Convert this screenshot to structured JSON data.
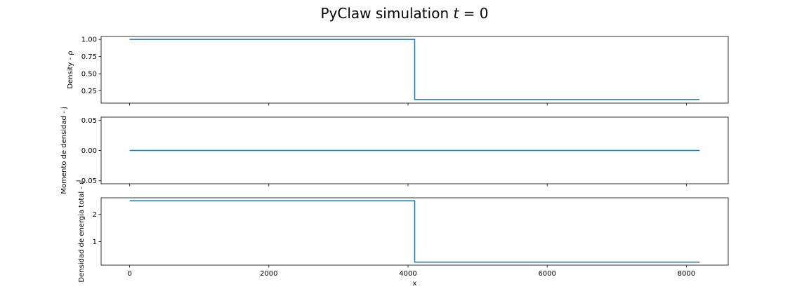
{
  "title": "PyClaw simulation t = 0",
  "title_parts": {
    "text": "PyClaw simulation ",
    "var": "t",
    "eq": " = 0"
  },
  "chart_data": [
    {
      "type": "line",
      "ylabel": "Density - ρ",
      "xlim": [
        -410,
        8602
      ],
      "ylim": [
        0.0725,
        1.0425
      ],
      "yticks": [
        0.25,
        0.5,
        0.75,
        1.0
      ],
      "ytick_labels": [
        "0.25",
        "0.50",
        "0.75",
        "1.00"
      ],
      "series": [
        {
          "x": [
            0,
            4096,
            4096,
            8192
          ],
          "y": [
            1.0,
            1.0,
            0.125,
            0.125
          ]
        }
      ]
    },
    {
      "type": "line",
      "ylabel": "Momento de densidad - j",
      "xlim": [
        -410,
        8602
      ],
      "ylim": [
        -0.055,
        0.055
      ],
      "yticks": [
        -0.05,
        0.0,
        0.05
      ],
      "ytick_labels": [
        "−0.05",
        "0.00",
        "0.05"
      ],
      "series": [
        {
          "x": [
            0,
            8192
          ],
          "y": [
            0,
            0
          ]
        }
      ]
    },
    {
      "type": "line",
      "ylabel": "Densidad de energia total - ε",
      "xlabel": "x",
      "xlim": [
        -410,
        8602
      ],
      "ylim": [
        0.14,
        2.61
      ],
      "yticks": [
        1,
        2
      ],
      "ytick_labels": [
        "1",
        "2"
      ],
      "xticks": [
        0,
        2000,
        4000,
        6000,
        8000
      ],
      "xtick_labels": [
        "0",
        "2000",
        "4000",
        "6000",
        "8000"
      ],
      "series": [
        {
          "x": [
            0,
            4096,
            4096,
            8192
          ],
          "y": [
            2.5,
            2.5,
            0.25,
            0.25
          ]
        }
      ]
    }
  ]
}
